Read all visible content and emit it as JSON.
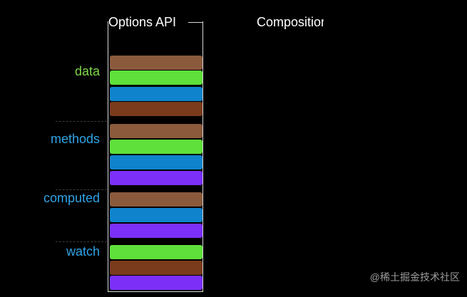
{
  "titles": {
    "options": "Options API",
    "composition": "Composition API"
  },
  "groups": [
    {
      "label": "data",
      "color": "#7fd94a"
    },
    {
      "label": "methods",
      "color": "#2fa3e6"
    },
    {
      "label": "computed",
      "color": "#2fa3e6"
    },
    {
      "label": "watch",
      "color": "#2fa3e6"
    }
  ],
  "colors": {
    "brown_light": "#8b5a3c",
    "green": "#5fe03a",
    "blue": "#0f83cc",
    "brown_dark": "#7a3b1c",
    "purple": "#7b2ff7"
  },
  "bars": [
    "brown_light",
    "green",
    "blue",
    "brown_dark",
    "brown_light",
    "green",
    "blue",
    "purple",
    "brown_light",
    "blue",
    "purple",
    "green",
    "brown_dark",
    "purple"
  ],
  "watermark": "@稀土掘金技术社区"
}
